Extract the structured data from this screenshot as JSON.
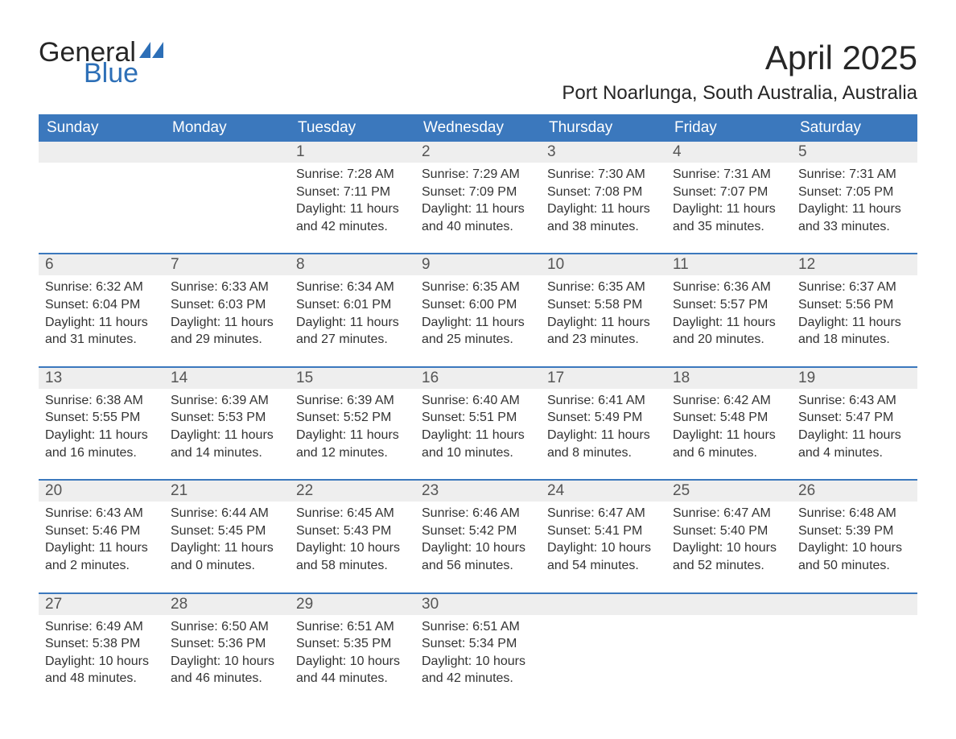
{
  "logo": {
    "text_general": "General",
    "text_blue": "Blue",
    "flag_color": "#2d6fb7",
    "general_color": "#262626",
    "blue_color": "#2d6fb7"
  },
  "title": {
    "month": "April 2025",
    "location": "Port Noarlunga, South Australia, Australia",
    "month_fontsize": 42,
    "location_fontsize": 24,
    "text_color": "#262626"
  },
  "calendar": {
    "type": "table",
    "header_bg": "#3b78bd",
    "header_text_color": "#ffffff",
    "daynum_bg": "#eeeeee",
    "separator_color": "#3b78bd",
    "text_color": "#333333",
    "day_headers": [
      "Sunday",
      "Monday",
      "Tuesday",
      "Wednesday",
      "Thursday",
      "Friday",
      "Saturday"
    ],
    "weeks": [
      [
        {
          "day": "",
          "sunrise": "",
          "sunset": "",
          "daylight": ""
        },
        {
          "day": "",
          "sunrise": "",
          "sunset": "",
          "daylight": ""
        },
        {
          "day": "1",
          "sunrise": "Sunrise: 7:28 AM",
          "sunset": "Sunset: 7:11 PM",
          "daylight": "Daylight: 11 hours and 42 minutes."
        },
        {
          "day": "2",
          "sunrise": "Sunrise: 7:29 AM",
          "sunset": "Sunset: 7:09 PM",
          "daylight": "Daylight: 11 hours and 40 minutes."
        },
        {
          "day": "3",
          "sunrise": "Sunrise: 7:30 AM",
          "sunset": "Sunset: 7:08 PM",
          "daylight": "Daylight: 11 hours and 38 minutes."
        },
        {
          "day": "4",
          "sunrise": "Sunrise: 7:31 AM",
          "sunset": "Sunset: 7:07 PM",
          "daylight": "Daylight: 11 hours and 35 minutes."
        },
        {
          "day": "5",
          "sunrise": "Sunrise: 7:31 AM",
          "sunset": "Sunset: 7:05 PM",
          "daylight": "Daylight: 11 hours and 33 minutes."
        }
      ],
      [
        {
          "day": "6",
          "sunrise": "Sunrise: 6:32 AM",
          "sunset": "Sunset: 6:04 PM",
          "daylight": "Daylight: 11 hours and 31 minutes."
        },
        {
          "day": "7",
          "sunrise": "Sunrise: 6:33 AM",
          "sunset": "Sunset: 6:03 PM",
          "daylight": "Daylight: 11 hours and 29 minutes."
        },
        {
          "day": "8",
          "sunrise": "Sunrise: 6:34 AM",
          "sunset": "Sunset: 6:01 PM",
          "daylight": "Daylight: 11 hours and 27 minutes."
        },
        {
          "day": "9",
          "sunrise": "Sunrise: 6:35 AM",
          "sunset": "Sunset: 6:00 PM",
          "daylight": "Daylight: 11 hours and 25 minutes."
        },
        {
          "day": "10",
          "sunrise": "Sunrise: 6:35 AM",
          "sunset": "Sunset: 5:58 PM",
          "daylight": "Daylight: 11 hours and 23 minutes."
        },
        {
          "day": "11",
          "sunrise": "Sunrise: 6:36 AM",
          "sunset": "Sunset: 5:57 PM",
          "daylight": "Daylight: 11 hours and 20 minutes."
        },
        {
          "day": "12",
          "sunrise": "Sunrise: 6:37 AM",
          "sunset": "Sunset: 5:56 PM",
          "daylight": "Daylight: 11 hours and 18 minutes."
        }
      ],
      [
        {
          "day": "13",
          "sunrise": "Sunrise: 6:38 AM",
          "sunset": "Sunset: 5:55 PM",
          "daylight": "Daylight: 11 hours and 16 minutes."
        },
        {
          "day": "14",
          "sunrise": "Sunrise: 6:39 AM",
          "sunset": "Sunset: 5:53 PM",
          "daylight": "Daylight: 11 hours and 14 minutes."
        },
        {
          "day": "15",
          "sunrise": "Sunrise: 6:39 AM",
          "sunset": "Sunset: 5:52 PM",
          "daylight": "Daylight: 11 hours and 12 minutes."
        },
        {
          "day": "16",
          "sunrise": "Sunrise: 6:40 AM",
          "sunset": "Sunset: 5:51 PM",
          "daylight": "Daylight: 11 hours and 10 minutes."
        },
        {
          "day": "17",
          "sunrise": "Sunrise: 6:41 AM",
          "sunset": "Sunset: 5:49 PM",
          "daylight": "Daylight: 11 hours and 8 minutes."
        },
        {
          "day": "18",
          "sunrise": "Sunrise: 6:42 AM",
          "sunset": "Sunset: 5:48 PM",
          "daylight": "Daylight: 11 hours and 6 minutes."
        },
        {
          "day": "19",
          "sunrise": "Sunrise: 6:43 AM",
          "sunset": "Sunset: 5:47 PM",
          "daylight": "Daylight: 11 hours and 4 minutes."
        }
      ],
      [
        {
          "day": "20",
          "sunrise": "Sunrise: 6:43 AM",
          "sunset": "Sunset: 5:46 PM",
          "daylight": "Daylight: 11 hours and 2 minutes."
        },
        {
          "day": "21",
          "sunrise": "Sunrise: 6:44 AM",
          "sunset": "Sunset: 5:45 PM",
          "daylight": "Daylight: 11 hours and 0 minutes."
        },
        {
          "day": "22",
          "sunrise": "Sunrise: 6:45 AM",
          "sunset": "Sunset: 5:43 PM",
          "daylight": "Daylight: 10 hours and 58 minutes."
        },
        {
          "day": "23",
          "sunrise": "Sunrise: 6:46 AM",
          "sunset": "Sunset: 5:42 PM",
          "daylight": "Daylight: 10 hours and 56 minutes."
        },
        {
          "day": "24",
          "sunrise": "Sunrise: 6:47 AM",
          "sunset": "Sunset: 5:41 PM",
          "daylight": "Daylight: 10 hours and 54 minutes."
        },
        {
          "day": "25",
          "sunrise": "Sunrise: 6:47 AM",
          "sunset": "Sunset: 5:40 PM",
          "daylight": "Daylight: 10 hours and 52 minutes."
        },
        {
          "day": "26",
          "sunrise": "Sunrise: 6:48 AM",
          "sunset": "Sunset: 5:39 PM",
          "daylight": "Daylight: 10 hours and 50 minutes."
        }
      ],
      [
        {
          "day": "27",
          "sunrise": "Sunrise: 6:49 AM",
          "sunset": "Sunset: 5:38 PM",
          "daylight": "Daylight: 10 hours and 48 minutes."
        },
        {
          "day": "28",
          "sunrise": "Sunrise: 6:50 AM",
          "sunset": "Sunset: 5:36 PM",
          "daylight": "Daylight: 10 hours and 46 minutes."
        },
        {
          "day": "29",
          "sunrise": "Sunrise: 6:51 AM",
          "sunset": "Sunset: 5:35 PM",
          "daylight": "Daylight: 10 hours and 44 minutes."
        },
        {
          "day": "30",
          "sunrise": "Sunrise: 6:51 AM",
          "sunset": "Sunset: 5:34 PM",
          "daylight": "Daylight: 10 hours and 42 minutes."
        },
        {
          "day": "",
          "sunrise": "",
          "sunset": "",
          "daylight": ""
        },
        {
          "day": "",
          "sunrise": "",
          "sunset": "",
          "daylight": ""
        },
        {
          "day": "",
          "sunrise": "",
          "sunset": "",
          "daylight": ""
        }
      ]
    ]
  }
}
